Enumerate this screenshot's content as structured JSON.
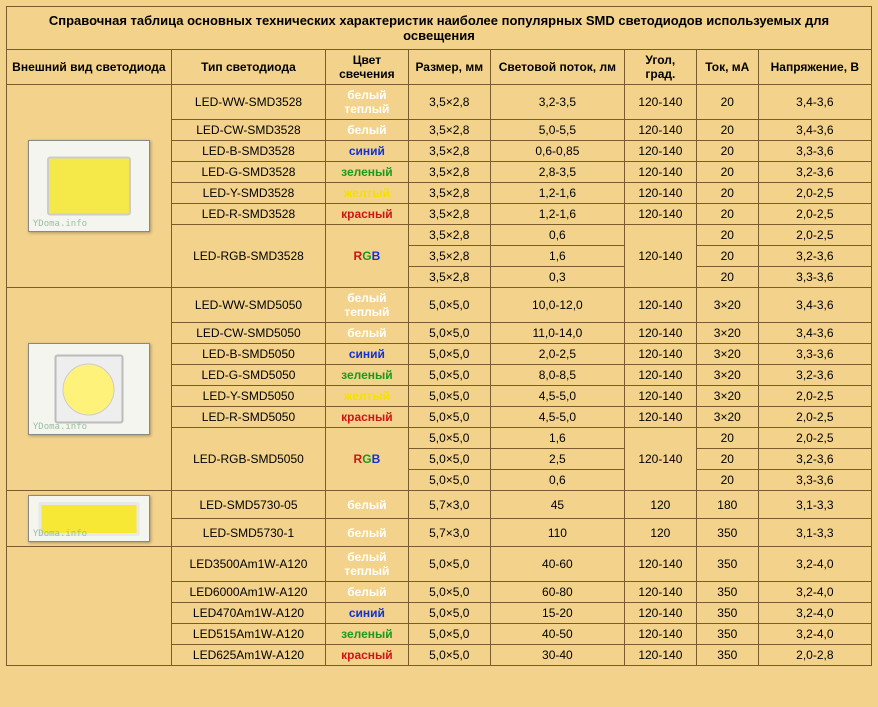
{
  "title": "Справочная таблица основных технических характеристик наиболее популярных SMD светодиодов используемых для освещения",
  "headers": {
    "appearance": "Внешний вид светодиода",
    "type": "Тип светодиода",
    "color": "Цвет свечения",
    "size": "Размер, мм",
    "flux": "Световой поток, лм",
    "angle": "Угол, град.",
    "current": "Ток, мА",
    "voltage": "Напряжение, В"
  },
  "watermark": "YDoma.info",
  "color_labels": {
    "warm_white1": "белый",
    "warm_white2": "теплый",
    "white": "белый",
    "blue": "синий",
    "green": "зеленый",
    "yellow": "желтый",
    "red": "красный",
    "rgb_r": "R",
    "rgb_g": "G",
    "rgb_b": "B"
  },
  "color_hex": {
    "warm_white": "#ffffff",
    "white": "#ffffff",
    "blue": "#1030d8",
    "green": "#1a9a1a",
    "yellow": "#f5e000",
    "red": "#cc1515"
  },
  "col_widths": {
    "appearance": "160px",
    "type": "150px",
    "color": "80px",
    "size": "80px",
    "flux": "130px",
    "angle": "70px",
    "current": "60px",
    "voltage": "110px"
  },
  "groups": [
    {
      "img": "3528",
      "rows": [
        {
          "type": "LED-WW-SMD3528",
          "colorKey": "warm_white",
          "size": "3,5×2,8",
          "flux": "3,2-3,5",
          "angle": "120-140",
          "current": "20",
          "voltage": "3,4-3,6"
        },
        {
          "type": "LED-CW-SMD3528",
          "colorKey": "white",
          "size": "3,5×2,8",
          "flux": "5,0-5,5",
          "angle": "120-140",
          "current": "20",
          "voltage": "3,4-3,6"
        },
        {
          "type": "LED-B-SMD3528",
          "colorKey": "blue",
          "size": "3,5×2,8",
          "flux": "0,6-0,85",
          "angle": "120-140",
          "current": "20",
          "voltage": "3,3-3,6"
        },
        {
          "type": "LED-G-SMD3528",
          "colorKey": "green",
          "size": "3,5×2,8",
          "flux": "2,8-3,5",
          "angle": "120-140",
          "current": "20",
          "voltage": "3,2-3,6"
        },
        {
          "type": "LED-Y-SMD3528",
          "colorKey": "yellow",
          "size": "3,5×2,8",
          "flux": "1,2-1,6",
          "angle": "120-140",
          "current": "20",
          "voltage": "2,0-2,5"
        },
        {
          "type": "LED-R-SMD3528",
          "colorKey": "red",
          "size": "3,5×2,8",
          "flux": "1,2-1,6",
          "angle": "120-140",
          "current": "20",
          "voltage": "2,0-2,5"
        }
      ],
      "rgb": {
        "type": "LED-RGB-SMD3528",
        "angle": "120-140",
        "sub": [
          {
            "size": "3,5×2,8",
            "flux": "0,6",
            "current": "20",
            "voltage": "2,0-2,5"
          },
          {
            "size": "3,5×2,8",
            "flux": "1,6",
            "current": "20",
            "voltage": "3,2-3,6"
          },
          {
            "size": "3,5×2,8",
            "flux": "0,3",
            "current": "20",
            "voltage": "3,3-3,6"
          }
        ]
      }
    },
    {
      "img": "5050",
      "rows": [
        {
          "type": "LED-WW-SMD5050",
          "colorKey": "warm_white",
          "size": "5,0×5,0",
          "flux": "10,0-12,0",
          "angle": "120-140",
          "current": "3×20",
          "voltage": "3,4-3,6"
        },
        {
          "type": "LED-CW-SMD5050",
          "colorKey": "white",
          "size": "5,0×5,0",
          "flux": "11,0-14,0",
          "angle": "120-140",
          "current": "3×20",
          "voltage": "3,4-3,6"
        },
        {
          "type": "LED-B-SMD5050",
          "colorKey": "blue",
          "size": "5,0×5,0",
          "flux": "2,0-2,5",
          "angle": "120-140",
          "current": "3×20",
          "voltage": "3,3-3,6"
        },
        {
          "type": "LED-G-SMD5050",
          "colorKey": "green",
          "size": "5,0×5,0",
          "flux": "8,0-8,5",
          "angle": "120-140",
          "current": "3×20",
          "voltage": "3,2-3,6"
        },
        {
          "type": "LED-Y-SMD5050",
          "colorKey": "yellow",
          "size": "5,0×5,0",
          "flux": "4,5-5,0",
          "angle": "120-140",
          "current": "3×20",
          "voltage": "2,0-2,5"
        },
        {
          "type": "LED-R-SMD5050",
          "colorKey": "red",
          "size": "5,0×5,0",
          "flux": "4,5-5,0",
          "angle": "120-140",
          "current": "3×20",
          "voltage": "2,0-2,5"
        }
      ],
      "rgb": {
        "type": "LED-RGB-SMD5050",
        "angle": "120-140",
        "sub": [
          {
            "size": "5,0×5,0",
            "flux": "1,6",
            "current": "20",
            "voltage": "2,0-2,5"
          },
          {
            "size": "5,0×5,0",
            "flux": "2,5",
            "current": "20",
            "voltage": "3,2-3,6"
          },
          {
            "size": "5,0×5,0",
            "flux": "0,6",
            "current": "20",
            "voltage": "3,3-3,6"
          }
        ]
      }
    },
    {
      "img": "5730",
      "rows": [
        {
          "type": "LED-SMD5730-05",
          "colorKey": "white",
          "size": "5,7×3,0",
          "flux": "45",
          "angle": "120",
          "current": "180",
          "voltage": "3,1-3,3"
        },
        {
          "type": "LED-SMD5730-1",
          "colorKey": "white",
          "size": "5,7×3,0",
          "flux": "110",
          "angle": "120",
          "current": "350",
          "voltage": "3,1-3,3"
        }
      ]
    },
    {
      "img": null,
      "rows": [
        {
          "type": "LED3500Am1W-A120",
          "colorKey": "warm_white",
          "size": "5,0×5,0",
          "flux": "40-60",
          "angle": "120-140",
          "current": "350",
          "voltage": "3,2-4,0"
        },
        {
          "type": "LED6000Am1W-A120",
          "colorKey": "white",
          "size": "5,0×5,0",
          "flux": "60-80",
          "angle": "120-140",
          "current": "350",
          "voltage": "3,2-4,0"
        },
        {
          "type": "LED470Am1W-A120",
          "colorKey": "blue",
          "size": "5,0×5,0",
          "flux": "15-20",
          "angle": "120-140",
          "current": "350",
          "voltage": "3,2-4,0"
        },
        {
          "type": "LED515Am1W-A120",
          "colorKey": "green",
          "size": "5,0×5,0",
          "flux": "40-50",
          "angle": "120-140",
          "current": "350",
          "voltage": "3,2-4,0"
        },
        {
          "type": "LED625Am1W-A120",
          "colorKey": "red",
          "size": "5,0×5,0",
          "flux": "30-40",
          "angle": "120-140",
          "current": "350",
          "voltage": "2,0-2,8"
        }
      ]
    }
  ]
}
